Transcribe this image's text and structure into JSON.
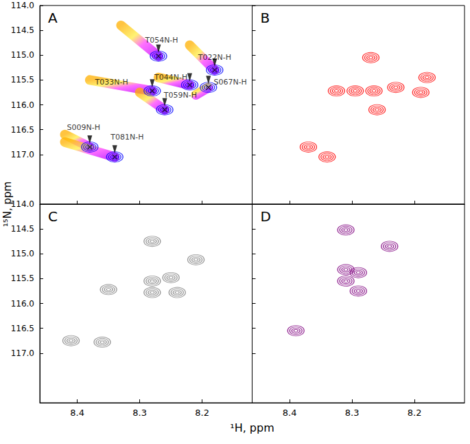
{
  "chart_data": {
    "type": "contour",
    "xlabel": "¹H, ppm",
    "ylabel": "¹⁵N, ppm",
    "xlim": [
      8.46,
      8.12
    ],
    "ylim": [
      118.0,
      114.0
    ],
    "xticks": [
      8.4,
      8.3,
      8.2
    ],
    "yticks": [
      {
        "value": 114,
        "label": "114.0"
      },
      114.5,
      {
        "value": 115,
        "label": "115.0"
      },
      115.5,
      {
        "value": 116,
        "label": "116.0"
      },
      116.5,
      {
        "value": 117,
        "label": "117.0"
      }
    ],
    "panels": [
      {
        "label": "A",
        "tick_labels": "y",
        "color": "#0000ff",
        "residues": [
          {
            "label": "T054N-H",
            "from": [
              8.33,
              114.4
            ],
            "to": [
              8.27,
              115.02
            ],
            "label_at": [
              8.265,
              114.7
            ]
          },
          {
            "label": "T022N-H",
            "from": [
              8.22,
              114.8
            ],
            "to": [
              8.18,
              115.3
            ],
            "label_at": [
              8.18,
              115.05
            ]
          },
          {
            "label": "T044N-H",
            "from": [
              8.27,
              115.45
            ],
            "to": [
              8.22,
              115.6
            ],
            "label_at": [
              8.25,
              115.45
            ]
          },
          {
            "label": "S067N-H",
            "from": [
              8.21,
              115.8
            ],
            "to": [
              8.19,
              115.65
            ],
            "label_at": [
              8.155,
              115.55
            ]
          },
          {
            "label": "T033N-H",
            "from": [
              8.38,
              115.5
            ],
            "to": [
              8.28,
              115.72
            ],
            "label_at": [
              8.345,
              115.55
            ]
          },
          {
            "label": "T059N-H",
            "from": [
              8.3,
              115.75
            ],
            "to": [
              8.26,
              116.1
            ],
            "label_at": [
              8.235,
              115.8
            ]
          },
          {
            "label": "S009N-H",
            "from": [
              8.42,
              116.6
            ],
            "to": [
              8.38,
              116.85
            ],
            "label_at": [
              8.39,
              116.45
            ]
          },
          {
            "label": "T081N-H",
            "from": [
              8.42,
              116.75
            ],
            "to": [
              8.34,
              117.05
            ],
            "label_at": [
              8.32,
              116.65
            ]
          }
        ]
      },
      {
        "label": "B",
        "tick_labels": false,
        "color": "#ff0000",
        "peaks": [
          [
            8.27,
            115.05
          ],
          [
            8.325,
            115.72
          ],
          [
            8.295,
            115.72
          ],
          [
            8.265,
            115.72
          ],
          [
            8.23,
            115.65
          ],
          [
            8.19,
            115.75
          ],
          [
            8.18,
            115.45
          ],
          [
            8.26,
            116.1
          ],
          [
            8.37,
            116.85
          ],
          [
            8.34,
            117.05
          ]
        ]
      },
      {
        "label": "C",
        "tick_labels": true,
        "color": "#808080",
        "peaks": [
          [
            8.28,
            114.75
          ],
          [
            8.21,
            115.12
          ],
          [
            8.28,
            115.55
          ],
          [
            8.25,
            115.48
          ],
          [
            8.28,
            115.78
          ],
          [
            8.24,
            115.78
          ],
          [
            8.35,
            115.72
          ],
          [
            8.41,
            116.75
          ],
          [
            8.36,
            116.78
          ]
        ]
      },
      {
        "label": "D",
        "tick_labels": "x",
        "color": "#800080",
        "peaks": [
          [
            8.31,
            114.52
          ],
          [
            8.24,
            114.85
          ],
          [
            8.31,
            115.32
          ],
          [
            8.29,
            115.38
          ],
          [
            8.31,
            115.55
          ],
          [
            8.29,
            115.75
          ],
          [
            8.39,
            116.55
          ]
        ]
      }
    ]
  }
}
